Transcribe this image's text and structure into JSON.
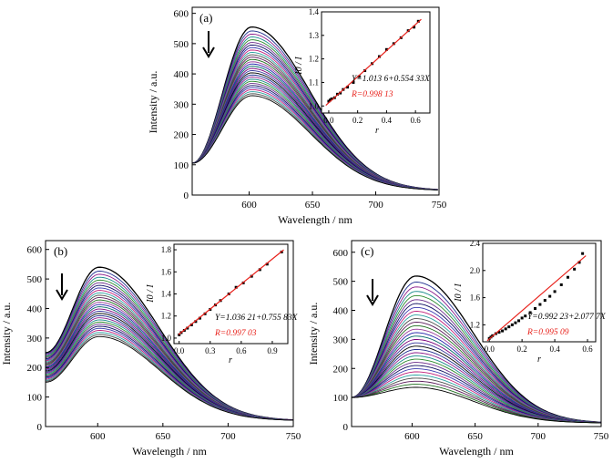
{
  "chart_data": [
    {
      "panel_label": "(a)",
      "type": "line",
      "xlabel": "Wavelength / nm",
      "ylabel": "Intensity / a.u.",
      "xlim": [
        555,
        750
      ],
      "ylim": [
        0,
        620
      ],
      "x_ticks": [
        600,
        650,
        700,
        750
      ],
      "y_ticks": [
        0,
        100,
        200,
        300,
        400,
        500,
        600
      ],
      "arrow": "down",
      "series_summary": {
        "peak_x": 602,
        "peak_start": 555,
        "peak_end": 328,
        "start_value": 105,
        "end_value": 15,
        "curve_count": 30
      },
      "inset": {
        "type": "scatter",
        "xlabel": "r",
        "ylabel": "I0 / I",
        "xlim": [
          -0.05,
          0.7
        ],
        "ylim": [
          0.97,
          1.4
        ],
        "x_ticks": [
          0.0,
          0.2,
          0.4,
          0.6
        ],
        "x_tick_labels": [
          "0.0",
          "0.2",
          "0.4",
          "0.6"
        ],
        "y_ticks": [
          1.0,
          1.1,
          1.2,
          1.3,
          1.4
        ],
        "y_tick_labels": [
          "1.0",
          "1.1",
          "1.2",
          "1.3",
          "1.4"
        ],
        "points": [
          [
            0.0,
            1.02
          ],
          [
            0.01,
            1.025
          ],
          [
            0.02,
            1.03
          ],
          [
            0.04,
            1.035
          ],
          [
            0.06,
            1.05
          ],
          [
            0.08,
            1.055
          ],
          [
            0.1,
            1.07
          ],
          [
            0.13,
            1.08
          ],
          [
            0.17,
            1.1
          ],
          [
            0.21,
            1.125
          ],
          [
            0.25,
            1.15
          ],
          [
            0.3,
            1.18
          ],
          [
            0.35,
            1.21
          ],
          [
            0.4,
            1.24
          ],
          [
            0.45,
            1.265
          ],
          [
            0.5,
            1.29
          ],
          [
            0.55,
            1.32
          ],
          [
            0.59,
            1.335
          ],
          [
            0.62,
            1.36
          ]
        ],
        "fit": {
          "intercept": 1.0136,
          "slope": 0.55433
        },
        "equation": "Y=1.013 6+0.554 33X",
        "r_value": "R=0.998 13"
      }
    },
    {
      "panel_label": "(b)",
      "type": "line",
      "xlabel": "Wavelength / nm",
      "ylabel": "Intensity / a.u.",
      "xlim": [
        560,
        750
      ],
      "ylim": [
        0,
        630
      ],
      "x_ticks": [
        600,
        650,
        700,
        750
      ],
      "y_ticks": [
        0,
        100,
        200,
        300,
        400,
        500,
        600
      ],
      "arrow": "down",
      "series_summary": {
        "peak_x": 601,
        "peak_start": 540,
        "peak_end": 305,
        "start_value": 250,
        "start_value_low": 150,
        "end_value": 20,
        "curve_count": 30
      },
      "inset": {
        "type": "scatter",
        "xlabel": "r",
        "ylabel": "I0 / I",
        "xlim": [
          -0.05,
          1.05
        ],
        "ylim": [
          0.95,
          1.85
        ],
        "x_ticks": [
          0.0,
          0.3,
          0.6,
          0.9
        ],
        "x_tick_labels": [
          "0.0",
          "0.3",
          "0.6",
          "0.9"
        ],
        "y_ticks": [
          1.0,
          1.2,
          1.4,
          1.6,
          1.8
        ],
        "y_tick_labels": [
          "1.0",
          "1.2",
          "1.4",
          "1.6",
          "1.8"
        ],
        "points": [
          [
            0.0,
            1.03
          ],
          [
            0.02,
            1.05
          ],
          [
            0.05,
            1.07
          ],
          [
            0.08,
            1.09
          ],
          [
            0.12,
            1.12
          ],
          [
            0.16,
            1.15
          ],
          [
            0.2,
            1.18
          ],
          [
            0.25,
            1.22
          ],
          [
            0.3,
            1.26
          ],
          [
            0.35,
            1.3
          ],
          [
            0.4,
            1.34
          ],
          [
            0.48,
            1.4
          ],
          [
            0.55,
            1.46
          ],
          [
            0.62,
            1.5
          ],
          [
            0.7,
            1.56
          ],
          [
            0.78,
            1.62
          ],
          [
            0.85,
            1.67
          ],
          [
            0.99,
            1.78
          ]
        ],
        "fit": {
          "intercept": 1.03621,
          "slope": 0.75583
        },
        "equation": "Y=1.036 21+0.755 83X",
        "r_value": "R=0.997 03"
      }
    },
    {
      "panel_label": "(c)",
      "type": "line",
      "xlabel": "Wavelength / nm",
      "ylabel": "Intensity / a.u.",
      "xlim": [
        552,
        750
      ],
      "ylim": [
        0,
        640
      ],
      "x_ticks": [
        600,
        650,
        700,
        750
      ],
      "y_ticks": [
        0,
        100,
        200,
        300,
        400,
        500,
        600
      ],
      "arrow": "down",
      "series_summary": {
        "peak_x": 603,
        "peak_start": 518,
        "peak_end": 135,
        "start_value": 100,
        "end_value": 12,
        "curve_count": 32
      },
      "inset": {
        "type": "scatter",
        "xlabel": "r",
        "ylabel": "I0 / I",
        "xlim": [
          -0.04,
          0.65
        ],
        "ylim": [
          0.95,
          2.4
        ],
        "x_ticks": [
          0.0,
          0.2,
          0.4,
          0.6
        ],
        "x_tick_labels": [
          "0.0",
          "0.2",
          "0.4",
          "0.6"
        ],
        "y_ticks": [
          1.2,
          1.6,
          2.0,
          2.4
        ],
        "y_tick_labels": [
          "1.2",
          "1.6",
          "2.0",
          "2.4"
        ],
        "points": [
          [
            0.0,
            1.0
          ],
          [
            0.01,
            1.02
          ],
          [
            0.02,
            1.04
          ],
          [
            0.04,
            1.07
          ],
          [
            0.06,
            1.09
          ],
          [
            0.08,
            1.11
          ],
          [
            0.1,
            1.14
          ],
          [
            0.12,
            1.17
          ],
          [
            0.14,
            1.2
          ],
          [
            0.16,
            1.23
          ],
          [
            0.18,
            1.26
          ],
          [
            0.2,
            1.3
          ],
          [
            0.22,
            1.33
          ],
          [
            0.25,
            1.38
          ],
          [
            0.28,
            1.44
          ],
          [
            0.31,
            1.5
          ],
          [
            0.34,
            1.56
          ],
          [
            0.37,
            1.62
          ],
          [
            0.4,
            1.69
          ],
          [
            0.44,
            1.79
          ],
          [
            0.48,
            1.9
          ],
          [
            0.52,
            2.02
          ],
          [
            0.55,
            2.12
          ],
          [
            0.57,
            2.25
          ]
        ],
        "fit": {
          "intercept": 0.99223,
          "slope": 2.0777
        },
        "equation": "Y=0.992 23+2.077 7X",
        "r_value": "R=0.995 09"
      }
    }
  ],
  "palette": [
    "#000000",
    "#1f2f8f",
    "#8b1a8b",
    "#1a8b8b",
    "#2e8b2e",
    "#6b2e8b",
    "#0d0d60",
    "#3a3ab0",
    "#c01f7a",
    "#2aa1a1",
    "#4c4c4c",
    "#5a1a5a",
    "#1e6e1e",
    "#9a3b9a",
    "#2222aa",
    "#006666",
    "#7a007a",
    "#333399"
  ],
  "fit_color": "#e8201a",
  "point_color": "#000000"
}
